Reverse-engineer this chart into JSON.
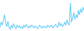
{
  "values": [
    3.5,
    4.2,
    3.8,
    4.5,
    5.2,
    4.0,
    3.6,
    4.3,
    3.5,
    3.2,
    3.8,
    3.4,
    4.0,
    3.6,
    3.3,
    3.8,
    3.5,
    3.7,
    3.4,
    3.6,
    3.3,
    3.8,
    3.5,
    3.9,
    3.6,
    3.4,
    3.7,
    3.5,
    3.8,
    3.6,
    3.4,
    3.7,
    3.5,
    3.3,
    3.6,
    3.8,
    3.5,
    3.4,
    3.7,
    3.5,
    3.6,
    3.4,
    3.8,
    3.6,
    3.5,
    3.8,
    3.6,
    3.4,
    3.7,
    3.9,
    3.6,
    3.5,
    4.2,
    3.7,
    4.0,
    3.6,
    3.8,
    4.2,
    3.8,
    4.5,
    4.0,
    3.8,
    6.8,
    4.2,
    4.8,
    5.5,
    4.6,
    5.2,
    4.8,
    5.8,
    5.2,
    6.0,
    5.5,
    6.2,
    5.8
  ],
  "line_color": "#5bc8f5",
  "bg_color": "#ffffff",
  "ylim_min": 3.0,
  "ylim_max": 7.2,
  "linewidth": 0.75
}
